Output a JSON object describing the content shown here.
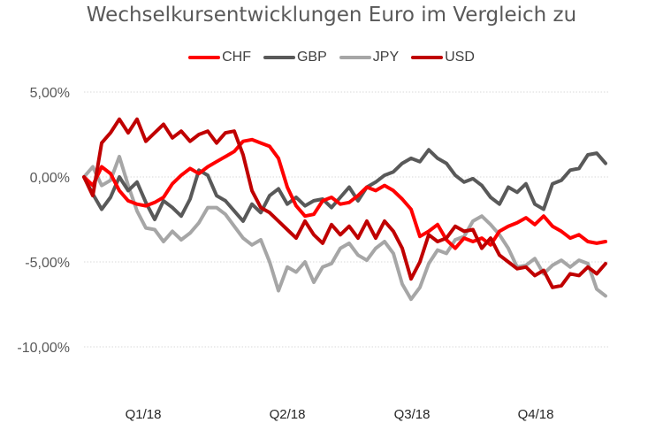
{
  "chart_data": {
    "type": "line",
    "title": "Wechselkursentwicklungen Euro im Vergleich zu",
    "xlabel": "",
    "ylabel": "",
    "ylim": [
      -10,
      5
    ],
    "yticks": [
      5,
      0,
      -5,
      -10
    ],
    "ytick_labels": [
      "5,00%",
      "0,00%",
      "-5,00%",
      "-10,00%"
    ],
    "x_tick_labels": [
      "Q1/18",
      "Q2/18",
      "Q3/18",
      "Q4/18"
    ],
    "x_tick_positions": [
      0.125,
      0.375,
      0.625,
      0.875
    ],
    "grid": "horizontal-dotted",
    "legend_position": "top-center",
    "x": [
      0,
      1,
      2,
      3,
      4,
      5,
      6,
      7,
      8,
      9,
      10,
      11,
      12,
      13,
      14,
      15,
      16,
      17,
      18,
      19,
      20,
      21,
      22,
      23,
      24,
      25,
      26,
      27,
      28,
      29,
      30,
      31,
      32,
      33,
      34,
      35,
      36,
      37,
      38,
      39,
      40,
      41,
      42,
      43,
      44,
      45,
      46,
      47,
      48,
      49,
      50,
      51,
      52,
      53,
      54,
      55,
      56,
      57,
      58,
      59
    ],
    "series": [
      {
        "name": "CHF",
        "color": "#ff0000",
        "values": [
          0.0,
          -0.5,
          0.6,
          0.2,
          -0.8,
          -1.4,
          -1.6,
          -1.7,
          -1.5,
          -1.2,
          -0.4,
          0.1,
          0.5,
          0.2,
          0.6,
          0.9,
          1.2,
          1.5,
          2.1,
          2.2,
          2.0,
          1.8,
          1.1,
          -0.6,
          -1.7,
          -2.3,
          -2.2,
          -1.4,
          -1.2,
          -1.6,
          -1.5,
          -1.1,
          -0.6,
          -0.8,
          -0.5,
          -0.8,
          -1.3,
          -1.9,
          -3.5,
          -3.2,
          -2.8,
          -3.7,
          -4.2,
          -3.6,
          -3.8,
          -3.6,
          -4.0,
          -3.2,
          -2.9,
          -2.7,
          -2.4,
          -2.8,
          -2.3,
          -2.9,
          -3.2,
          -3.6,
          -3.4,
          -3.8,
          -3.9,
          -3.8
        ]
      },
      {
        "name": "GBP",
        "color": "#595959",
        "values": [
          0.0,
          -1.0,
          -1.9,
          -1.2,
          0.0,
          -0.8,
          -0.3,
          -1.5,
          -2.5,
          -1.4,
          -1.8,
          -2.3,
          -1.3,
          0.4,
          0.1,
          -1.1,
          -1.4,
          -2.0,
          -2.6,
          -1.6,
          -2.1,
          -1.1,
          -0.7,
          -1.6,
          -1.2,
          -1.7,
          -1.4,
          -1.3,
          -1.8,
          -1.2,
          -0.6,
          -1.4,
          -0.6,
          -0.3,
          0.1,
          0.3,
          0.8,
          1.1,
          0.9,
          1.6,
          1.1,
          0.8,
          0.1,
          -0.3,
          -0.1,
          -0.5,
          -1.2,
          -1.6,
          -0.6,
          -0.9,
          -0.4,
          -1.6,
          -1.9,
          -0.4,
          -0.2,
          0.4,
          0.5,
          1.3,
          1.4,
          0.8
        ]
      },
      {
        "name": "JPY",
        "color": "#a6a6a6",
        "values": [
          0.0,
          0.6,
          -0.5,
          -0.2,
          1.2,
          -0.5,
          -2.0,
          -3.0,
          -3.1,
          -3.8,
          -3.2,
          -3.7,
          -3.3,
          -2.7,
          -1.8,
          -1.8,
          -2.2,
          -2.9,
          -3.6,
          -4.0,
          -3.7,
          -5.0,
          -6.7,
          -5.3,
          -5.6,
          -5.0,
          -6.2,
          -5.3,
          -5.1,
          -4.2,
          -3.9,
          -4.6,
          -4.9,
          -4.2,
          -3.8,
          -4.5,
          -6.3,
          -7.2,
          -6.5,
          -5.1,
          -4.3,
          -4.5,
          -3.7,
          -3.5,
          -2.6,
          -2.3,
          -2.8,
          -3.4,
          -4.2,
          -5.3,
          -5.2,
          -4.8,
          -5.7,
          -5.2,
          -4.9,
          -5.3,
          -4.9,
          -5.1,
          -6.6,
          -7.0
        ]
      },
      {
        "name": "USD",
        "color": "#c00000",
        "values": [
          0.0,
          -1.1,
          2.0,
          2.6,
          3.4,
          2.6,
          3.4,
          2.1,
          2.6,
          3.1,
          2.3,
          2.7,
          2.1,
          2.5,
          2.7,
          2.0,
          2.6,
          2.7,
          1.3,
          -0.8,
          -1.8,
          -2.1,
          -2.6,
          -3.1,
          -3.6,
          -2.6,
          -3.4,
          -3.9,
          -2.8,
          -3.4,
          -2.9,
          -3.6,
          -2.6,
          -3.6,
          -2.6,
          -3.2,
          -4.2,
          -6.0,
          -5.0,
          -3.4,
          -3.8,
          -3.6,
          -2.9,
          -3.2,
          -3.1,
          -4.2,
          -3.6,
          -4.6,
          -5.0,
          -5.4,
          -5.3,
          -5.8,
          -5.5,
          -6.5,
          -6.4,
          -5.7,
          -5.8,
          -5.3,
          -5.7,
          -5.1
        ]
      }
    ]
  }
}
